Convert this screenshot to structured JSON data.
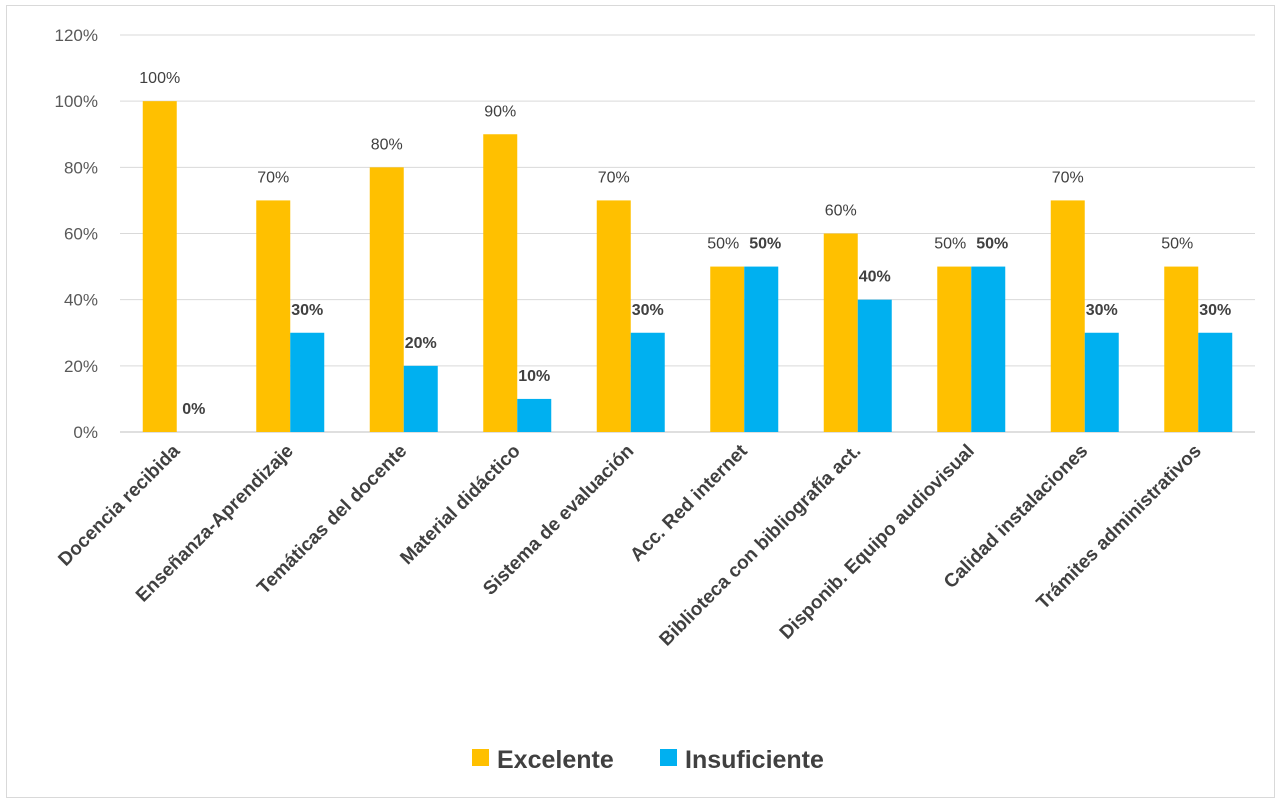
{
  "chart_data": {
    "type": "bar",
    "title": "",
    "xlabel": "",
    "ylabel": "",
    "ylim": [
      0,
      1.2
    ],
    "yticks": [
      "0%",
      "20%",
      "40%",
      "60%",
      "80%",
      "100%",
      "120%"
    ],
    "grid": true,
    "legend_position": "bottom",
    "categories": [
      "Docencia recibida",
      "Enseñanza-Aprendizaje",
      "Temáticas del docente",
      "Material didáctico",
      "Sistema de evaluación",
      "Acc. Red internet",
      "Biblioteca con bibliografía act.",
      "Disponib. Equipo audiovisual",
      "Calidad instalaciones",
      "Trámites administrativos"
    ],
    "series": [
      {
        "name": "Excelente",
        "color": "#FFC000",
        "values": [
          1.0,
          0.7,
          0.8,
          0.9,
          0.7,
          0.5,
          0.6,
          0.5,
          0.7,
          0.5
        ],
        "labels": [
          "100%",
          "70%",
          "80%",
          "90%",
          "70%",
          "50%",
          "60%",
          "50%",
          "70%",
          "50%"
        ]
      },
      {
        "name": "Insuficiente",
        "color": "#00B0F0",
        "values": [
          0.0,
          0.3,
          0.2,
          0.1,
          0.3,
          0.5,
          0.4,
          0.5,
          0.3,
          0.3
        ],
        "labels": [
          "0%",
          "30%",
          "20%",
          "10%",
          "30%",
          "50%",
          "40%",
          "50%",
          "30%",
          "30%"
        ]
      }
    ]
  }
}
